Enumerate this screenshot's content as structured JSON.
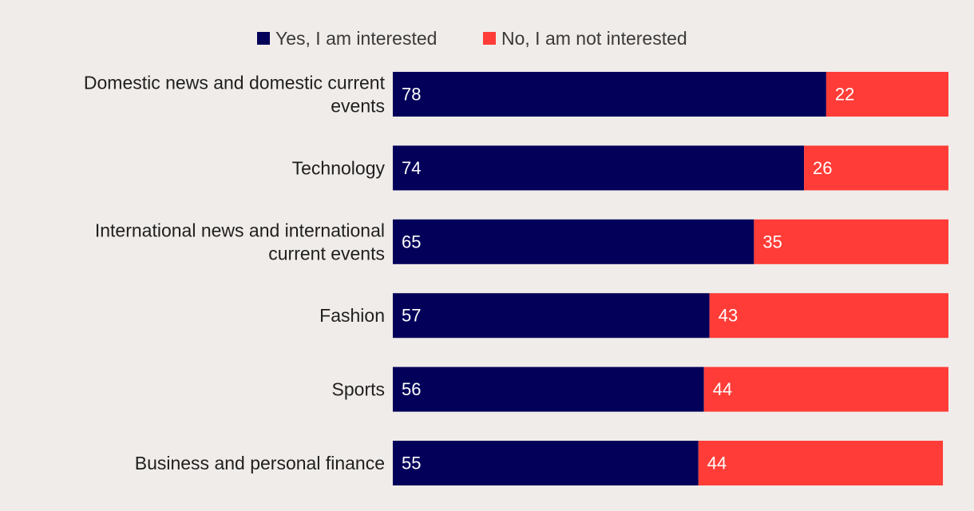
{
  "chart_data": {
    "type": "bar",
    "orientation": "horizontal",
    "stacked": true,
    "title": "",
    "xlabel": "",
    "ylabel": "",
    "xlim": [
      0,
      100
    ],
    "grid": false,
    "legend_position": "top",
    "categories": [
      [
        "Domestic news and domestic current",
        "events"
      ],
      [
        "Technology"
      ],
      [
        "International news and international",
        "current events"
      ],
      [
        "Fashion"
      ],
      [
        "Sports"
      ],
      [
        "Business and personal finance"
      ]
    ],
    "series": [
      {
        "name": "Yes, I am interested",
        "color": "#03005a",
        "values": [
          78,
          74,
          65,
          57,
          56,
          55
        ]
      },
      {
        "name": "No, I am not interested",
        "color": "#ff3c37",
        "values": [
          22,
          26,
          35,
          43,
          44,
          44
        ]
      }
    ]
  }
}
